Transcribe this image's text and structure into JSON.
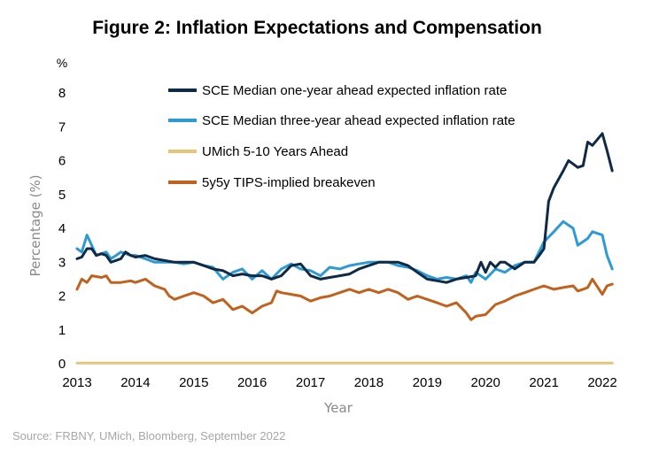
{
  "chart_data": {
    "type": "line",
    "title": "Figure 2: Inflation Expectations and Compensation",
    "unit_label": "%",
    "ylabel": "Percentage (%)",
    "xlabel": "Year",
    "source": "Source: FRBNY, UMich, Bloomberg, September 2022",
    "xlim": [
      2013,
      2022.3
    ],
    "ylim": [
      0,
      8
    ],
    "x_ticks": [
      2013,
      2014,
      2015,
      2016,
      2017,
      2018,
      2019,
      2020,
      2021,
      2022
    ],
    "y_ticks": [
      0,
      1,
      2,
      3,
      4,
      5,
      6,
      7,
      8
    ],
    "grid": false,
    "legend_position": "top-right",
    "series": [
      {
        "name": "SCE Median one-year ahead expected inflation rate",
        "color": "#0f2a47",
        "points": [
          [
            2013.0,
            3.1
          ],
          [
            2013.08,
            3.15
          ],
          [
            2013.17,
            3.4
          ],
          [
            2013.25,
            3.4
          ],
          [
            2013.33,
            3.2
          ],
          [
            2013.42,
            3.25
          ],
          [
            2013.5,
            3.2
          ],
          [
            2013.58,
            3.0
          ],
          [
            2013.67,
            3.05
          ],
          [
            2013.75,
            3.1
          ],
          [
            2013.83,
            3.3
          ],
          [
            2013.92,
            3.2
          ],
          [
            2014.0,
            3.15
          ],
          [
            2014.17,
            3.2
          ],
          [
            2014.33,
            3.1
          ],
          [
            2014.5,
            3.05
          ],
          [
            2014.67,
            3.0
          ],
          [
            2014.83,
            3.0
          ],
          [
            2015.0,
            3.0
          ],
          [
            2015.17,
            2.9
          ],
          [
            2015.33,
            2.8
          ],
          [
            2015.5,
            2.75
          ],
          [
            2015.67,
            2.6
          ],
          [
            2015.83,
            2.65
          ],
          [
            2016.0,
            2.6
          ],
          [
            2016.17,
            2.6
          ],
          [
            2016.33,
            2.5
          ],
          [
            2016.5,
            2.6
          ],
          [
            2016.67,
            2.9
          ],
          [
            2016.83,
            2.95
          ],
          [
            2017.0,
            2.6
          ],
          [
            2017.17,
            2.5
          ],
          [
            2017.33,
            2.55
          ],
          [
            2017.5,
            2.6
          ],
          [
            2017.67,
            2.65
          ],
          [
            2017.83,
            2.8
          ],
          [
            2018.0,
            2.9
          ],
          [
            2018.17,
            3.0
          ],
          [
            2018.33,
            3.0
          ],
          [
            2018.5,
            3.0
          ],
          [
            2018.67,
            2.9
          ],
          [
            2018.83,
            2.7
          ],
          [
            2019.0,
            2.5
          ],
          [
            2019.17,
            2.45
          ],
          [
            2019.33,
            2.4
          ],
          [
            2019.5,
            2.5
          ],
          [
            2019.67,
            2.55
          ],
          [
            2019.83,
            2.6
          ],
          [
            2019.92,
            3.0
          ],
          [
            2020.0,
            2.7
          ],
          [
            2020.08,
            3.0
          ],
          [
            2020.17,
            2.85
          ],
          [
            2020.25,
            3.0
          ],
          [
            2020.33,
            3.0
          ],
          [
            2020.5,
            2.8
          ],
          [
            2020.67,
            3.0
          ],
          [
            2020.83,
            3.0
          ],
          [
            2020.92,
            3.2
          ],
          [
            2021.0,
            3.4
          ],
          [
            2021.08,
            4.8
          ],
          [
            2021.17,
            5.2
          ],
          [
            2021.33,
            5.7
          ],
          [
            2021.42,
            6.0
          ],
          [
            2021.5,
            5.9
          ],
          [
            2021.58,
            5.8
          ],
          [
            2021.67,
            5.85
          ],
          [
            2021.75,
            6.55
          ],
          [
            2021.83,
            6.45
          ],
          [
            2022.0,
            6.8
          ],
          [
            2022.08,
            6.3
          ],
          [
            2022.17,
            5.7
          ]
        ]
      },
      {
        "name": "SCE Median three-year ahead expected inflation rate",
        "color": "#2e9ad4",
        "points": [
          [
            2013.0,
            3.4
          ],
          [
            2013.08,
            3.3
          ],
          [
            2013.17,
            3.8
          ],
          [
            2013.25,
            3.5
          ],
          [
            2013.33,
            3.2
          ],
          [
            2013.5,
            3.3
          ],
          [
            2013.58,
            3.1
          ],
          [
            2013.67,
            3.2
          ],
          [
            2013.75,
            3.3
          ],
          [
            2013.92,
            3.2
          ],
          [
            2014.0,
            3.2
          ],
          [
            2014.17,
            3.1
          ],
          [
            2014.33,
            3.0
          ],
          [
            2014.5,
            3.0
          ],
          [
            2014.67,
            3.0
          ],
          [
            2014.83,
            2.95
          ],
          [
            2015.0,
            3.0
          ],
          [
            2015.17,
            2.9
          ],
          [
            2015.33,
            2.85
          ],
          [
            2015.5,
            2.5
          ],
          [
            2015.67,
            2.7
          ],
          [
            2015.83,
            2.8
          ],
          [
            2016.0,
            2.5
          ],
          [
            2016.17,
            2.75
          ],
          [
            2016.33,
            2.5
          ],
          [
            2016.5,
            2.8
          ],
          [
            2016.67,
            2.95
          ],
          [
            2016.83,
            2.8
          ],
          [
            2017.0,
            2.75
          ],
          [
            2017.17,
            2.6
          ],
          [
            2017.33,
            2.85
          ],
          [
            2017.5,
            2.8
          ],
          [
            2017.67,
            2.9
          ],
          [
            2017.83,
            2.95
          ],
          [
            2018.0,
            3.0
          ],
          [
            2018.17,
            3.0
          ],
          [
            2018.33,
            3.0
          ],
          [
            2018.5,
            2.9
          ],
          [
            2018.67,
            2.85
          ],
          [
            2018.83,
            2.75
          ],
          [
            2019.0,
            2.6
          ],
          [
            2019.17,
            2.5
          ],
          [
            2019.33,
            2.55
          ],
          [
            2019.5,
            2.5
          ],
          [
            2019.67,
            2.6
          ],
          [
            2019.75,
            2.4
          ],
          [
            2019.83,
            2.7
          ],
          [
            2020.0,
            2.5
          ],
          [
            2020.17,
            2.8
          ],
          [
            2020.33,
            2.7
          ],
          [
            2020.5,
            2.9
          ],
          [
            2020.67,
            3.0
          ],
          [
            2020.83,
            3.0
          ],
          [
            2021.0,
            3.6
          ],
          [
            2021.17,
            3.9
          ],
          [
            2021.33,
            4.2
          ],
          [
            2021.5,
            4.0
          ],
          [
            2021.58,
            3.5
          ],
          [
            2021.75,
            3.7
          ],
          [
            2021.83,
            3.9
          ],
          [
            2022.0,
            3.8
          ],
          [
            2022.08,
            3.2
          ],
          [
            2022.17,
            2.8
          ]
        ]
      },
      {
        "name": "UMich 5-10 Years Ahead",
        "color": "#e6c47a",
        "points": [
          [
            2013.0,
            0.02
          ],
          [
            2022.17,
            0.02
          ]
        ]
      },
      {
        "name": "5y5y TIPS-implied breakeven",
        "color": "#c0621e",
        "points": [
          [
            2013.0,
            2.2
          ],
          [
            2013.08,
            2.5
          ],
          [
            2013.17,
            2.4
          ],
          [
            2013.25,
            2.6
          ],
          [
            2013.42,
            2.55
          ],
          [
            2013.5,
            2.6
          ],
          [
            2013.58,
            2.4
          ],
          [
            2013.75,
            2.4
          ],
          [
            2013.92,
            2.45
          ],
          [
            2014.0,
            2.4
          ],
          [
            2014.17,
            2.5
          ],
          [
            2014.33,
            2.3
          ],
          [
            2014.5,
            2.2
          ],
          [
            2014.58,
            2.0
          ],
          [
            2014.67,
            1.9
          ],
          [
            2014.83,
            2.0
          ],
          [
            2015.0,
            2.1
          ],
          [
            2015.17,
            2.0
          ],
          [
            2015.33,
            1.8
          ],
          [
            2015.5,
            1.9
          ],
          [
            2015.67,
            1.6
          ],
          [
            2015.83,
            1.7
          ],
          [
            2016.0,
            1.5
          ],
          [
            2016.17,
            1.7
          ],
          [
            2016.33,
            1.8
          ],
          [
            2016.42,
            2.15
          ],
          [
            2016.5,
            2.1
          ],
          [
            2016.67,
            2.05
          ],
          [
            2016.83,
            2.0
          ],
          [
            2017.0,
            1.85
          ],
          [
            2017.17,
            1.95
          ],
          [
            2017.33,
            2.0
          ],
          [
            2017.5,
            2.1
          ],
          [
            2017.67,
            2.2
          ],
          [
            2017.83,
            2.1
          ],
          [
            2018.0,
            2.2
          ],
          [
            2018.17,
            2.1
          ],
          [
            2018.33,
            2.2
          ],
          [
            2018.5,
            2.1
          ],
          [
            2018.67,
            1.9
          ],
          [
            2018.83,
            2.0
          ],
          [
            2019.0,
            1.9
          ],
          [
            2019.17,
            1.8
          ],
          [
            2019.33,
            1.7
          ],
          [
            2019.5,
            1.8
          ],
          [
            2019.67,
            1.5
          ],
          [
            2019.75,
            1.3
          ],
          [
            2019.83,
            1.4
          ],
          [
            2020.0,
            1.45
          ],
          [
            2020.17,
            1.75
          ],
          [
            2020.33,
            1.85
          ],
          [
            2020.5,
            2.0
          ],
          [
            2020.67,
            2.1
          ],
          [
            2020.83,
            2.2
          ],
          [
            2021.0,
            2.3
          ],
          [
            2021.17,
            2.2
          ],
          [
            2021.33,
            2.25
          ],
          [
            2021.5,
            2.3
          ],
          [
            2021.58,
            2.15
          ],
          [
            2021.67,
            2.2
          ],
          [
            2021.75,
            2.25
          ],
          [
            2021.83,
            2.5
          ],
          [
            2022.0,
            2.05
          ],
          [
            2022.08,
            2.3
          ],
          [
            2022.17,
            2.35
          ]
        ]
      }
    ]
  }
}
